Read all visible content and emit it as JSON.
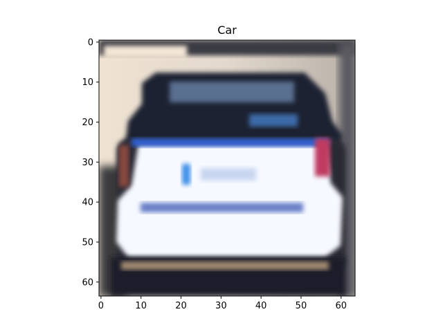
{
  "title": "Car",
  "image": {
    "description_pixels": "64x64",
    "x_ticks": [
      "0",
      "10",
      "20",
      "30",
      "40",
      "50",
      "60"
    ],
    "y_ticks": [
      "0",
      "10",
      "20",
      "30",
      "40",
      "50",
      "60"
    ],
    "x_tick_values": [
      0,
      10,
      20,
      30,
      40,
      50,
      60
    ],
    "y_tick_values": [
      0,
      10,
      20,
      30,
      40,
      50,
      60
    ],
    "x_range": [
      -0.5,
      63.5
    ],
    "y_range": [
      63.5,
      -0.5
    ]
  },
  "colors": {
    "background": "#ffffff",
    "axis": "#000000",
    "car_body": "#f4f8ff",
    "car_dark": "#1d2333",
    "backdrop": "#e8d9c6"
  }
}
